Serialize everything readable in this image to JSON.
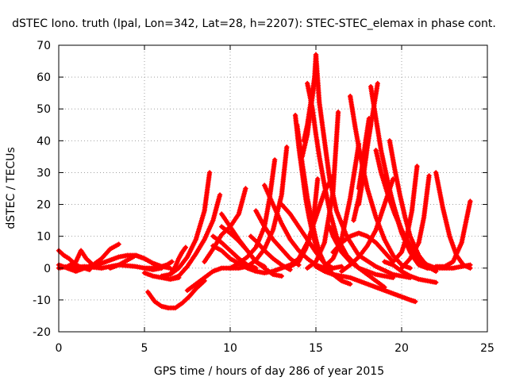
{
  "chart_data": {
    "type": "scatter",
    "title": "dSTEC Iono. truth (Ipal, Lon=342, Lat=28, h=2207): STEC-STEC_elemax in phase cont.",
    "xlabel": "GPS time / hours of day 286 of year 2015",
    "ylabel": "dSTEC  / TECUs",
    "xlim": [
      0,
      25
    ],
    "ylim": [
      -20,
      70
    ],
    "xticks": [
      0,
      5,
      10,
      15,
      20,
      25
    ],
    "yticks": [
      -20,
      -10,
      0,
      10,
      20,
      30,
      40,
      50,
      60,
      70
    ],
    "grid": true,
    "marker": "+",
    "series_color": "#ff0000",
    "series": [
      {
        "x": [
          0.0,
          0.3,
          0.6,
          0.9,
          1.2,
          1.5,
          1.8
        ],
        "y": [
          5.5,
          4.0,
          3.0,
          1.5,
          0.5,
          0.0,
          -0.5
        ]
      },
      {
        "x": [
          0.0,
          0.5,
          1.0,
          1.3,
          1.6,
          2.0,
          2.5
        ],
        "y": [
          0.0,
          0.5,
          2.0,
          5.5,
          3.0,
          1.0,
          0.0
        ]
      },
      {
        "x": [
          0.0,
          0.5,
          1.0,
          1.5,
          2.0,
          2.5,
          3.0,
          3.5
        ],
        "y": [
          1.0,
          0.0,
          -1.0,
          0.0,
          1.0,
          3.0,
          6.0,
          7.5
        ]
      },
      {
        "x": [
          0.5,
          1.5,
          2.5,
          3.5,
          4.5,
          5.0,
          5.5,
          6.0
        ],
        "y": [
          0.0,
          0.5,
          0.0,
          1.0,
          0.5,
          0.0,
          -0.5,
          0.0
        ]
      },
      {
        "x": [
          2.0,
          2.5,
          3.0,
          3.5,
          4.0,
          4.5,
          5.0,
          5.5,
          6.0
        ],
        "y": [
          0.5,
          1.5,
          2.5,
          3.5,
          4.0,
          4.0,
          3.0,
          1.5,
          0.5
        ]
      },
      {
        "x": [
          3.0,
          3.5,
          4.0,
          4.5,
          5.0,
          5.5,
          6.0,
          6.5
        ],
        "y": [
          0.0,
          1.0,
          2.5,
          4.0,
          3.0,
          1.5,
          0.5,
          0.0
        ]
      },
      {
        "x": [
          5.0,
          5.5,
          6.0,
          6.5,
          7.0
        ],
        "y": [
          -1.5,
          -2.5,
          -3.0,
          -3.5,
          -3.0
        ]
      },
      {
        "x": [
          5.0,
          5.5,
          6.0,
          6.3,
          6.6
        ],
        "y": [
          0.0,
          0.0,
          0.5,
          1.0,
          2.0
        ]
      },
      {
        "x": [
          5.2,
          5.6,
          6.0,
          6.4,
          6.8,
          7.2,
          7.6,
          8.0,
          8.5
        ],
        "y": [
          -7.5,
          -10.5,
          -12.0,
          -12.5,
          -12.5,
          -11.0,
          -9.0,
          -6.5,
          -4.0
        ]
      },
      {
        "x": [
          6.0,
          6.5,
          7.0,
          7.5,
          8.0,
          8.5,
          8.8
        ],
        "y": [
          -2.5,
          -2.0,
          0.0,
          3.5,
          9.0,
          18.0,
          30.0
        ]
      },
      {
        "x": [
          6.5,
          7.0,
          7.5,
          8.0,
          8.5,
          9.0,
          9.4
        ],
        "y": [
          -3.5,
          -2.5,
          0.5,
          4.5,
          9.0,
          15.0,
          23.0
        ]
      },
      {
        "x": [
          6.5,
          6.8,
          7.0,
          7.2,
          7.4
        ],
        "y": [
          -2.0,
          0.5,
          3.0,
          5.0,
          6.5
        ]
      },
      {
        "x": [
          7.5,
          8.0,
          8.5,
          9.0,
          9.5,
          10.0,
          10.5,
          11.0
        ],
        "y": [
          -7.0,
          -5.0,
          -3.0,
          -1.0,
          0.0,
          0.0,
          0.0,
          0.5
        ]
      },
      {
        "x": [
          8.5,
          9.0,
          9.5,
          10.0,
          10.5,
          10.9
        ],
        "y": [
          2.0,
          6.0,
          10.5,
          13.0,
          17.0,
          25.0
        ]
      },
      {
        "x": [
          9.0,
          9.5,
          10.0,
          10.5,
          11.0,
          11.5
        ],
        "y": [
          10.0,
          8.0,
          5.5,
          3.0,
          1.0,
          0.0
        ]
      },
      {
        "x": [
          9.0,
          9.5,
          10.0,
          10.5,
          11.0,
          11.5,
          12.0,
          12.5
        ],
        "y": [
          7.0,
          5.5,
          3.0,
          1.5,
          0.0,
          -1.0,
          -1.5,
          -1.0
        ]
      },
      {
        "x": [
          9.5,
          10.0,
          10.5,
          11.0,
          11.5,
          12.0,
          12.5,
          13.0
        ],
        "y": [
          17.0,
          13.0,
          9.0,
          5.5,
          2.0,
          0.0,
          -2.0,
          -2.5
        ]
      },
      {
        "x": [
          9.5,
          10.0,
          10.5,
          11.0,
          11.5,
          12.0
        ],
        "y": [
          13.0,
          11.0,
          8.5,
          5.5,
          2.0,
          0.5
        ]
      },
      {
        "x": [
          10.0,
          10.5,
          11.0,
          11.5,
          12.0,
          12.3,
          12.6
        ],
        "y": [
          0.0,
          1.5,
          3.5,
          6.5,
          13.0,
          22.0,
          34.0
        ]
      },
      {
        "x": [
          11.0,
          11.5,
          12.0,
          12.5,
          13.0,
          13.3
        ],
        "y": [
          0.5,
          2.5,
          6.0,
          12.0,
          23.0,
          38.0
        ]
      },
      {
        "x": [
          11.2,
          11.6,
          12.0,
          12.5,
          13.0,
          13.5
        ],
        "y": [
          10.0,
          8.0,
          5.5,
          3.0,
          1.0,
          -0.5
        ]
      },
      {
        "x": [
          11.5,
          12.0,
          12.5,
          13.0,
          13.5,
          14.0
        ],
        "y": [
          18.0,
          13.0,
          9.0,
          6.0,
          3.0,
          1.0
        ]
      },
      {
        "x": [
          12.0,
          12.5,
          13.0,
          13.5,
          14.0,
          14.5,
          15.0,
          15.5,
          16.0,
          16.5
        ],
        "y": [
          26.0,
          20.0,
          14.0,
          9.0,
          5.5,
          3.0,
          1.0,
          0.0,
          0.0,
          0.5
        ]
      },
      {
        "x": [
          12.5,
          13.0,
          13.5,
          14.0,
          14.5,
          15.0,
          15.5,
          16.0
        ],
        "y": [
          -1.0,
          0.0,
          1.0,
          3.0,
          8.0,
          16.0,
          24.0,
          29.0
        ]
      },
      {
        "x": [
          13.0,
          13.5,
          14.0,
          14.5,
          15.0,
          15.5,
          16.0,
          16.5
        ],
        "y": [
          20.0,
          17.0,
          13.0,
          9.0,
          5.0,
          1.5,
          -2.0,
          -3.0
        ]
      },
      {
        "x": [
          13.5,
          14.0,
          14.4,
          14.8,
          15.1
        ],
        "y": [
          0.5,
          2.0,
          6.0,
          12.0,
          28.0
        ]
      },
      {
        "x": [
          13.8,
          14.0,
          14.2,
          14.4,
          14.6,
          14.8,
          15.0,
          15.2,
          15.5,
          16.0
        ],
        "y": [
          48.0,
          38.0,
          30.0,
          22.0,
          16.0,
          11.0,
          7.0,
          4.0,
          1.5,
          0.0
        ]
      },
      {
        "x": [
          13.9,
          14.2,
          14.5,
          14.8,
          15.0,
          15.2,
          15.5,
          16.0,
          16.5,
          17.0
        ],
        "y": [
          45.0,
          33.0,
          22.0,
          14.0,
          9.0,
          5.0,
          1.5,
          -2.0,
          -4.0,
          -5.0
        ]
      },
      {
        "x": [
          14.2,
          14.5,
          14.7,
          14.9,
          15.0
        ],
        "y": [
          35.0,
          42.0,
          50.0,
          58.0,
          67.0
        ]
      },
      {
        "x": [
          14.3,
          14.5,
          14.7,
          14.9,
          15.0
        ],
        "y": [
          40.0,
          45.0,
          52.0,
          59.0,
          62.0
        ]
      },
      {
        "x": [
          14.5,
          14.8,
          15.0,
          15.2,
          15.5,
          15.8,
          16.2,
          16.8,
          17.5,
          18.5,
          19.5
        ],
        "y": [
          58.0,
          50.0,
          42.0,
          35.0,
          26.0,
          18.0,
          10.0,
          4.0,
          0.0,
          -2.0,
          -3.0
        ]
      },
      {
        "x": [
          14.5,
          15.0,
          15.5,
          16.0,
          16.3
        ],
        "y": [
          0.0,
          2.0,
          8.0,
          24.0,
          49.0
        ]
      },
      {
        "x": [
          15.0,
          15.2,
          15.5,
          15.8,
          16.2,
          16.8,
          17.5,
          18.5,
          19.5,
          20.5
        ],
        "y": [
          67.0,
          52.0,
          40.0,
          28.0,
          18.0,
          10.0,
          4.0,
          0.5,
          -2.0,
          -3.0
        ]
      },
      {
        "x": [
          15.0,
          15.5,
          16.0,
          16.5,
          17.0,
          17.5,
          18.0,
          18.5,
          19.0,
          19.5,
          20.0,
          20.5,
          20.8
        ],
        "y": [
          0.5,
          -1.0,
          -2.0,
          -2.5,
          -3.0,
          -4.0,
          -5.0,
          -6.0,
          -7.0,
          -8.0,
          -9.0,
          -10.0,
          -10.5
        ]
      },
      {
        "x": [
          15.5,
          16.0,
          16.5,
          17.0,
          17.5
        ],
        "y": [
          0.5,
          3.0,
          9.0,
          22.0,
          39.0
        ]
      },
      {
        "x": [
          15.8,
          16.0,
          16.2,
          16.5,
          17.0,
          17.5,
          18.0,
          18.5,
          19.0
        ],
        "y": [
          13.0,
          10.0,
          8.0,
          5.0,
          2.0,
          0.0,
          -2.0,
          -4.0,
          -6.0
        ]
      },
      {
        "x": [
          16.0,
          16.5,
          17.0,
          17.5,
          18.0,
          18.5,
          19.0,
          19.5
        ],
        "y": [
          5.0,
          8.0,
          10.0,
          11.0,
          10.0,
          8.0,
          5.0,
          2.0
        ]
      },
      {
        "x": [
          16.5,
          17.0,
          17.5,
          18.0,
          18.5,
          19.0,
          19.5
        ],
        "y": [
          -1.0,
          1.0,
          3.5,
          7.0,
          12.0,
          20.0,
          28.0
        ]
      },
      {
        "x": [
          17.0,
          17.3,
          17.6,
          18.0,
          18.5,
          19.0,
          19.5,
          20.0,
          20.5
        ],
        "y": [
          54.0,
          44.0,
          35.0,
          25.0,
          16.0,
          9.0,
          4.0,
          1.0,
          0.0
        ]
      },
      {
        "x": [
          17.2,
          17.5,
          17.8,
          18.0,
          18.3,
          18.6
        ],
        "y": [
          15.0,
          22.0,
          32.0,
          40.0,
          48.0,
          58.0
        ]
      },
      {
        "x": [
          17.5,
          17.8,
          18.0,
          18.2
        ],
        "y": [
          20.0,
          30.0,
          38.0,
          45.0
        ]
      },
      {
        "x": [
          17.5,
          17.7,
          17.9,
          18.1
        ],
        "y": [
          25.0,
          32.0,
          40.0,
          47.0
        ]
      },
      {
        "x": [
          18.2,
          18.5,
          18.8,
          19.2,
          19.6,
          20.0,
          20.5,
          21.0,
          21.5,
          22.0
        ],
        "y": [
          57.0,
          47.0,
          37.0,
          27.0,
          18.0,
          11.0,
          5.0,
          1.5,
          0.0,
          0.0
        ]
      },
      {
        "x": [
          18.5,
          18.8,
          19.2,
          19.6,
          20.0,
          20.5,
          21.0,
          21.5,
          22.0,
          22.5,
          23.0,
          23.5,
          24.0
        ],
        "y": [
          37.0,
          30.0,
          23.0,
          17.0,
          12.0,
          7.0,
          3.0,
          1.0,
          0.0,
          0.0,
          0.0,
          0.5,
          1.0
        ]
      },
      {
        "x": [
          19.0,
          19.4,
          19.8,
          20.2,
          20.6,
          21.0,
          21.5,
          22.0
        ],
        "y": [
          29.0,
          22.0,
          15.0,
          9.0,
          4.0,
          1.0,
          0.0,
          0.0
        ]
      },
      {
        "x": [
          19.3,
          19.6,
          19.9,
          20.2,
          20.5,
          21.0,
          21.5,
          22.0
        ],
        "y": [
          40.0,
          31.0,
          23.0,
          16.0,
          10.0,
          4.0,
          0.5,
          -1.0
        ]
      },
      {
        "x": [
          19.0,
          19.5,
          20.0,
          20.5,
          21.0,
          21.5,
          22.0
        ],
        "y": [
          2.0,
          1.0,
          -1.0,
          -2.5,
          -3.5,
          -4.0,
          -4.5
        ]
      },
      {
        "x": [
          19.5,
          20.0,
          20.3,
          20.6,
          20.9
        ],
        "y": [
          2.0,
          5.0,
          10.0,
          18.0,
          32.0
        ]
      },
      {
        "x": [
          20.0,
          20.5,
          21.0,
          21.3,
          21.6
        ],
        "y": [
          0.0,
          3.0,
          8.0,
          16.0,
          29.0
        ]
      },
      {
        "x": [
          22.0,
          22.4,
          22.8,
          23.2,
          23.6,
          24.0
        ],
        "y": [
          30.0,
          19.0,
          10.0,
          4.0,
          1.0,
          0.0
        ]
      },
      {
        "x": [
          22.0,
          22.5,
          23.0,
          23.5,
          24.0
        ],
        "y": [
          0.5,
          0.5,
          2.0,
          8.0,
          21.0
        ]
      }
    ]
  }
}
